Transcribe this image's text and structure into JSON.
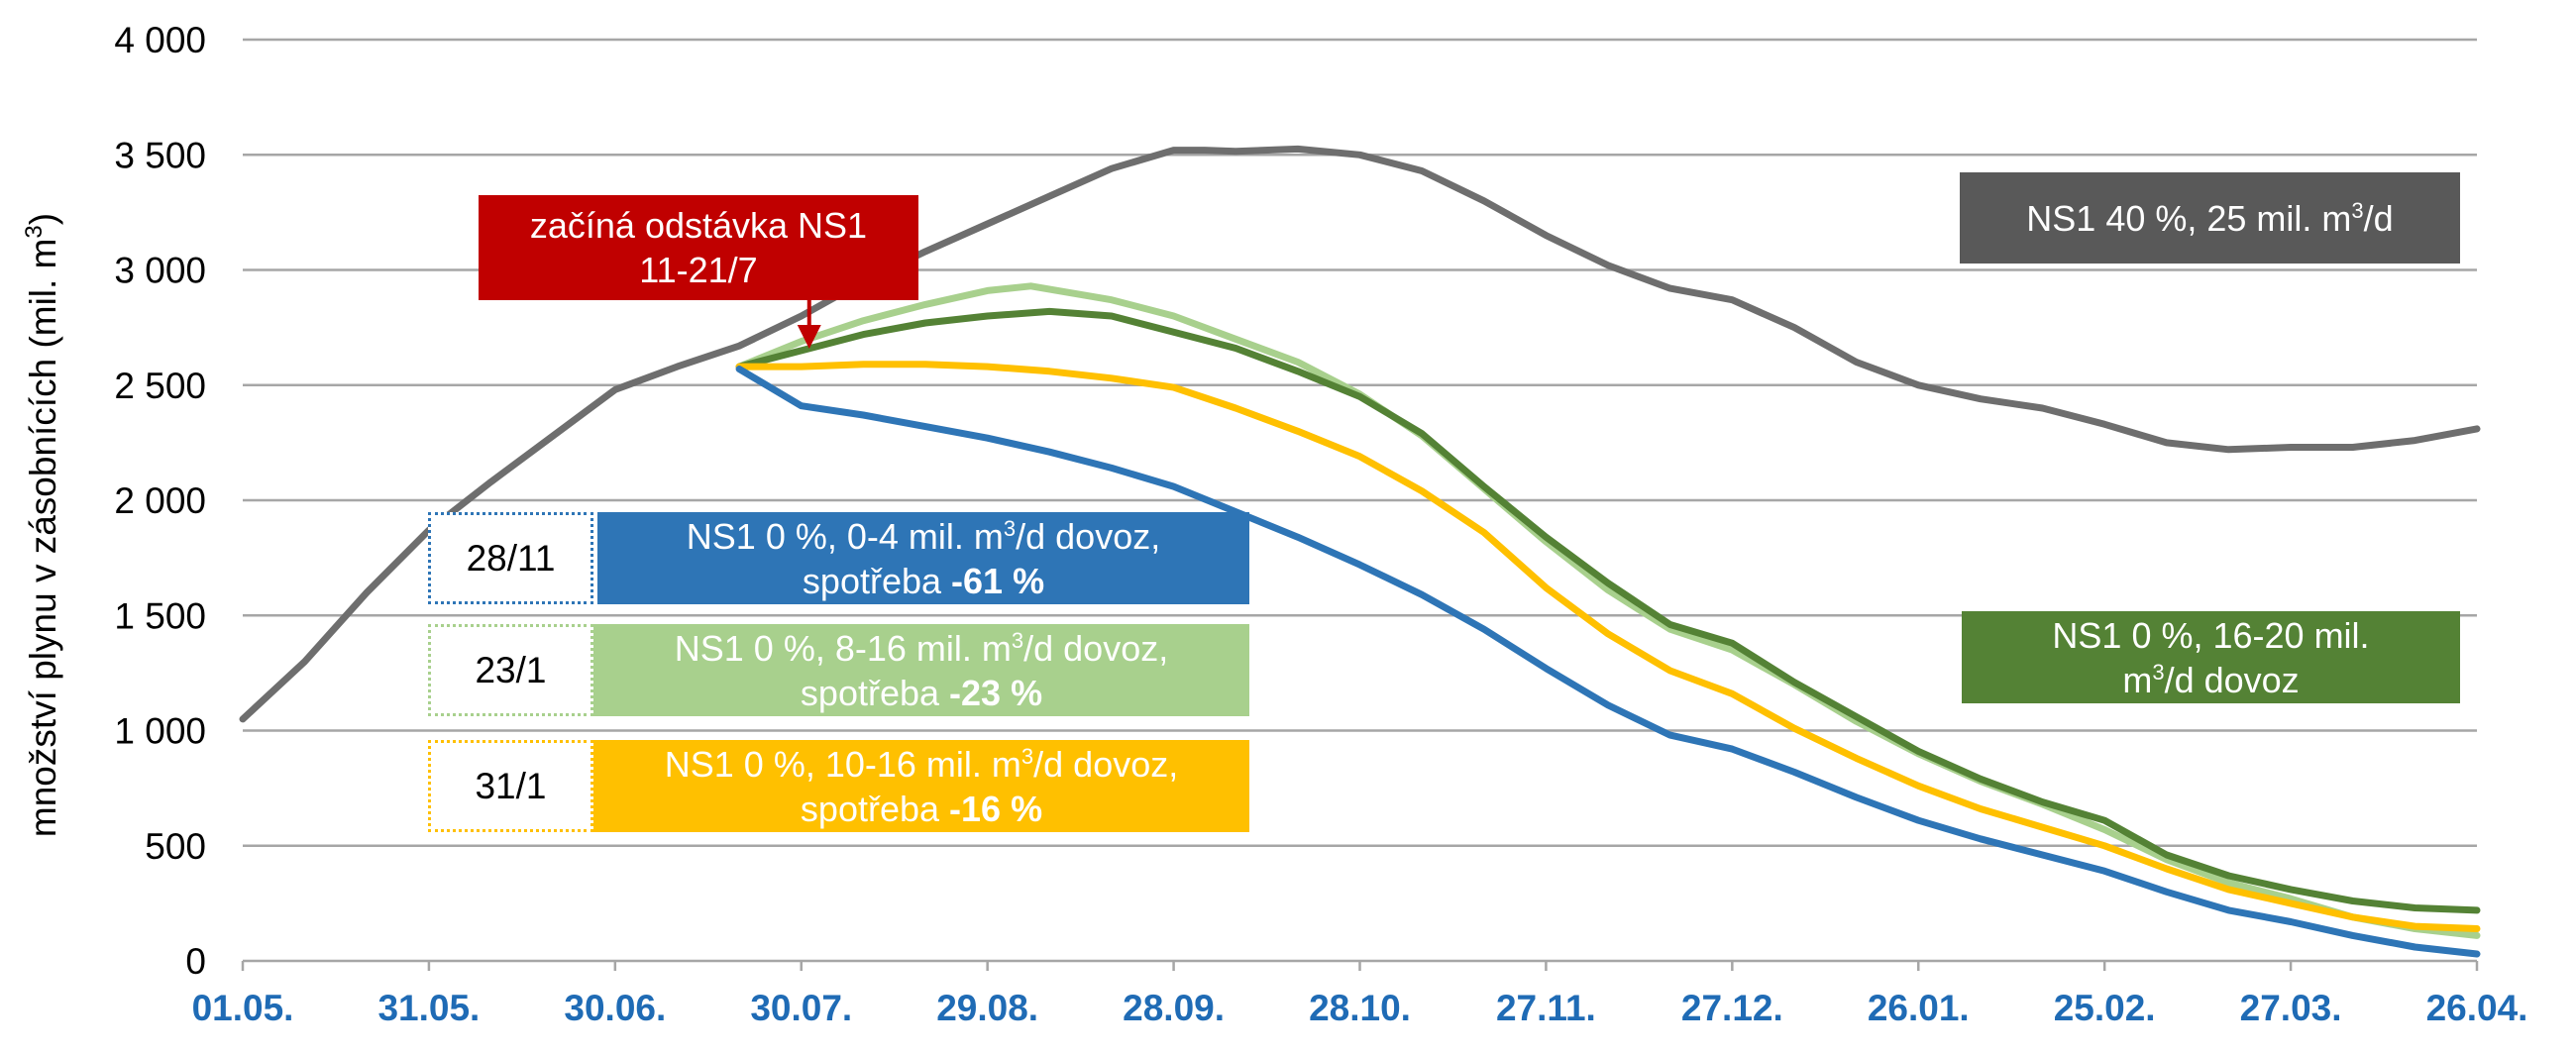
{
  "chart_data": {
    "type": "line",
    "ylabel": "množství plynu v zásobnících (mil. m³)",
    "ylabel_main": "množství plynu v zásobnících (mil. m",
    "ylabel_sup": "3",
    "ylabel_end": ")",
    "ylim": [
      0,
      4000
    ],
    "yticks": [
      0,
      500,
      1000,
      1500,
      2000,
      2500,
      3000,
      3500,
      4000
    ],
    "ytick_labels": [
      "0",
      "500",
      "1 000",
      "1 500",
      "2 000",
      "2 500",
      "3 000",
      "3 500",
      "4 000"
    ],
    "x_dates": [
      "2022-05-01",
      "2022-05-31",
      "2022-06-30",
      "2022-07-30",
      "2022-08-29",
      "2022-09-28",
      "2022-10-28",
      "2022-11-27",
      "2022-12-27",
      "2023-01-26",
      "2023-02-25",
      "2023-03-27",
      "2023-04-26"
    ],
    "xtick_labels": [
      "01.05.",
      "31.05.",
      "30.06.",
      "30.07.",
      "29.08.",
      "28.09.",
      "28.10.",
      "27.11.",
      "27.12.",
      "26.01.",
      "25.02.",
      "27.03.",
      "26.04."
    ],
    "grid": true,
    "colors": {
      "gray": "#6e6e6e",
      "light_green": "#a8d08d",
      "green": "#548235",
      "yellow": "#ffc000",
      "blue": "#2e75b6",
      "red": "#c00000",
      "axis_tick": "#1f6bb5"
    },
    "series": [
      {
        "name": "NS1 40 %, 25 mil. m³/d",
        "color": "#6e6e6e",
        "points": [
          [
            "2022-05-01",
            1050
          ],
          [
            "2022-05-11",
            1300
          ],
          [
            "2022-05-21",
            1600
          ],
          [
            "2022-05-31",
            1870
          ],
          [
            "2022-06-10",
            2080
          ],
          [
            "2022-06-20",
            2280
          ],
          [
            "2022-06-30",
            2480
          ],
          [
            "2022-07-10",
            2580
          ],
          [
            "2022-07-20",
            2670
          ],
          [
            "2022-07-30",
            2800
          ],
          [
            "2022-08-09",
            2950
          ],
          [
            "2022-08-19",
            3080
          ],
          [
            "2022-08-29",
            3200
          ],
          [
            "2022-09-08",
            3320
          ],
          [
            "2022-09-18",
            3440
          ],
          [
            "2022-09-28",
            3520
          ],
          [
            "2022-10-03",
            3520
          ],
          [
            "2022-10-08",
            3515
          ],
          [
            "2022-10-18",
            3525
          ],
          [
            "2022-10-28",
            3500
          ],
          [
            "2022-11-07",
            3430
          ],
          [
            "2022-11-17",
            3300
          ],
          [
            "2022-11-27",
            3150
          ],
          [
            "2022-12-07",
            3020
          ],
          [
            "2022-12-17",
            2920
          ],
          [
            "2022-12-27",
            2870
          ],
          [
            "2023-01-06",
            2750
          ],
          [
            "2023-01-16",
            2600
          ],
          [
            "2023-01-26",
            2500
          ],
          [
            "2023-02-05",
            2440
          ],
          [
            "2023-02-15",
            2400
          ],
          [
            "2023-02-25",
            2330
          ],
          [
            "2023-03-07",
            2250
          ],
          [
            "2023-03-17",
            2220
          ],
          [
            "2023-03-27",
            2230
          ],
          [
            "2023-04-06",
            2230
          ],
          [
            "2023-04-16",
            2260
          ],
          [
            "2023-04-26",
            2310
          ]
        ]
      },
      {
        "name": "NS1 0 %, 8-16 mil. m³/d dovoz",
        "color": "#a8d08d",
        "points": [
          [
            "2022-07-20",
            2580
          ],
          [
            "2022-07-30",
            2690
          ],
          [
            "2022-08-09",
            2780
          ],
          [
            "2022-08-19",
            2850
          ],
          [
            "2022-08-29",
            2910
          ],
          [
            "2022-09-05",
            2930
          ],
          [
            "2022-09-18",
            2870
          ],
          [
            "2022-09-28",
            2800
          ],
          [
            "2022-10-08",
            2700
          ],
          [
            "2022-10-18",
            2600
          ],
          [
            "2022-10-28",
            2460
          ],
          [
            "2022-11-07",
            2280
          ],
          [
            "2022-11-17",
            2050
          ],
          [
            "2022-11-27",
            1820
          ],
          [
            "2022-12-07",
            1610
          ],
          [
            "2022-12-17",
            1440
          ],
          [
            "2022-12-27",
            1350
          ],
          [
            "2023-01-06",
            1200
          ],
          [
            "2023-01-16",
            1040
          ],
          [
            "2023-01-26",
            900
          ],
          [
            "2023-02-05",
            780
          ],
          [
            "2023-02-15",
            680
          ],
          [
            "2023-02-25",
            570
          ],
          [
            "2023-03-07",
            440
          ],
          [
            "2023-03-17",
            340
          ],
          [
            "2023-03-27",
            270
          ],
          [
            "2023-04-06",
            190
          ],
          [
            "2023-04-16",
            140
          ],
          [
            "2023-04-26",
            110
          ]
        ]
      },
      {
        "name": "NS1 0 %, 16-20 mil. m³/d dovoz",
        "color": "#548235",
        "points": [
          [
            "2022-07-20",
            2580
          ],
          [
            "2022-07-30",
            2650
          ],
          [
            "2022-08-09",
            2720
          ],
          [
            "2022-08-19",
            2770
          ],
          [
            "2022-08-29",
            2800
          ],
          [
            "2022-09-08",
            2820
          ],
          [
            "2022-09-18",
            2800
          ],
          [
            "2022-09-28",
            2730
          ],
          [
            "2022-10-08",
            2660
          ],
          [
            "2022-10-18",
            2560
          ],
          [
            "2022-10-28",
            2450
          ],
          [
            "2022-11-07",
            2290
          ],
          [
            "2022-11-17",
            2060
          ],
          [
            "2022-11-27",
            1840
          ],
          [
            "2022-12-07",
            1640
          ],
          [
            "2022-12-17",
            1460
          ],
          [
            "2022-12-27",
            1380
          ],
          [
            "2023-01-06",
            1210
          ],
          [
            "2023-01-16",
            1060
          ],
          [
            "2023-01-26",
            910
          ],
          [
            "2023-02-05",
            790
          ],
          [
            "2023-02-15",
            690
          ],
          [
            "2023-02-25",
            610
          ],
          [
            "2023-03-07",
            460
          ],
          [
            "2023-03-17",
            370
          ],
          [
            "2023-03-27",
            310
          ],
          [
            "2023-04-06",
            260
          ],
          [
            "2023-04-16",
            230
          ],
          [
            "2023-04-26",
            220
          ]
        ]
      },
      {
        "name": "NS1 0 %, 10-16 mil. m³/d dovoz, spotřeba -16 %",
        "color": "#ffc000",
        "points": [
          [
            "2022-07-20",
            2580
          ],
          [
            "2022-07-30",
            2580
          ],
          [
            "2022-08-09",
            2590
          ],
          [
            "2022-08-19",
            2590
          ],
          [
            "2022-08-29",
            2580
          ],
          [
            "2022-09-08",
            2560
          ],
          [
            "2022-09-18",
            2530
          ],
          [
            "2022-09-28",
            2490
          ],
          [
            "2022-10-08",
            2400
          ],
          [
            "2022-10-18",
            2300
          ],
          [
            "2022-10-28",
            2190
          ],
          [
            "2022-11-07",
            2040
          ],
          [
            "2022-11-17",
            1860
          ],
          [
            "2022-11-27",
            1620
          ],
          [
            "2022-12-07",
            1420
          ],
          [
            "2022-12-17",
            1260
          ],
          [
            "2022-12-27",
            1160
          ],
          [
            "2023-01-06",
            1010
          ],
          [
            "2023-01-16",
            880
          ],
          [
            "2023-01-26",
            760
          ],
          [
            "2023-02-05",
            660
          ],
          [
            "2023-02-15",
            580
          ],
          [
            "2023-02-25",
            500
          ],
          [
            "2023-03-07",
            400
          ],
          [
            "2023-03-17",
            310
          ],
          [
            "2023-03-27",
            250
          ],
          [
            "2023-04-06",
            190
          ],
          [
            "2023-04-16",
            150
          ],
          [
            "2023-04-26",
            140
          ]
        ]
      },
      {
        "name": "NS1 0 %, 0-4 mil. m³/d dovoz, spotřeba -61 %",
        "color": "#2e75b6",
        "points": [
          [
            "2022-07-20",
            2570
          ],
          [
            "2022-07-30",
            2410
          ],
          [
            "2022-08-09",
            2370
          ],
          [
            "2022-08-19",
            2320
          ],
          [
            "2022-08-29",
            2270
          ],
          [
            "2022-09-08",
            2210
          ],
          [
            "2022-09-18",
            2140
          ],
          [
            "2022-09-28",
            2060
          ],
          [
            "2022-10-08",
            1950
          ],
          [
            "2022-10-18",
            1840
          ],
          [
            "2022-10-28",
            1720
          ],
          [
            "2022-11-07",
            1590
          ],
          [
            "2022-11-17",
            1440
          ],
          [
            "2022-11-27",
            1270
          ],
          [
            "2022-12-07",
            1110
          ],
          [
            "2022-12-17",
            980
          ],
          [
            "2022-12-27",
            920
          ],
          [
            "2023-01-06",
            820
          ],
          [
            "2023-01-16",
            710
          ],
          [
            "2023-01-26",
            610
          ],
          [
            "2023-02-05",
            530
          ],
          [
            "2023-02-15",
            460
          ],
          [
            "2023-02-25",
            390
          ],
          [
            "2023-03-07",
            300
          ],
          [
            "2023-03-17",
            220
          ],
          [
            "2023-03-27",
            170
          ],
          [
            "2023-04-06",
            110
          ],
          [
            "2023-04-16",
            60
          ],
          [
            "2023-04-26",
            30
          ]
        ]
      }
    ]
  },
  "annotations": {
    "outage": {
      "line1": "začíná odstávka NS1",
      "line2": "11-21/7",
      "date": "2022-07-30"
    },
    "gray_box": {
      "pre": "NS1 40 %, 25 mil. m",
      "sup": "3",
      "post": "/d"
    },
    "green_box": {
      "line1": "NS1 0 %, 16-20 mil.",
      "line2_sup": "3",
      "line2_post": "/d dovoz",
      "line2_pre": "m"
    },
    "blue_box": {
      "tag": "28/11",
      "line1_pre": "NS1 0 %, 0-4 mil. m",
      "line1_sup": "3",
      "line1_post": "/d dovoz,",
      "line2_pre": "spotřeba ",
      "line2_bold": "-61 %"
    },
    "lightgreen_box": {
      "tag": "23/1",
      "line1_pre": "NS1 0 %, 8-16 mil. m",
      "line1_sup": "3",
      "line1_post": "/d dovoz,",
      "line2_pre": "spotřeba ",
      "line2_bold": "-23 %"
    },
    "yellow_box": {
      "tag": "31/1",
      "line1_pre": "NS1 0 %, 10-16 mil. m",
      "line1_sup": "3",
      "line1_post": "/d dovoz,",
      "line2_pre": "spotřeba ",
      "line2_bold": "-16 %"
    }
  }
}
